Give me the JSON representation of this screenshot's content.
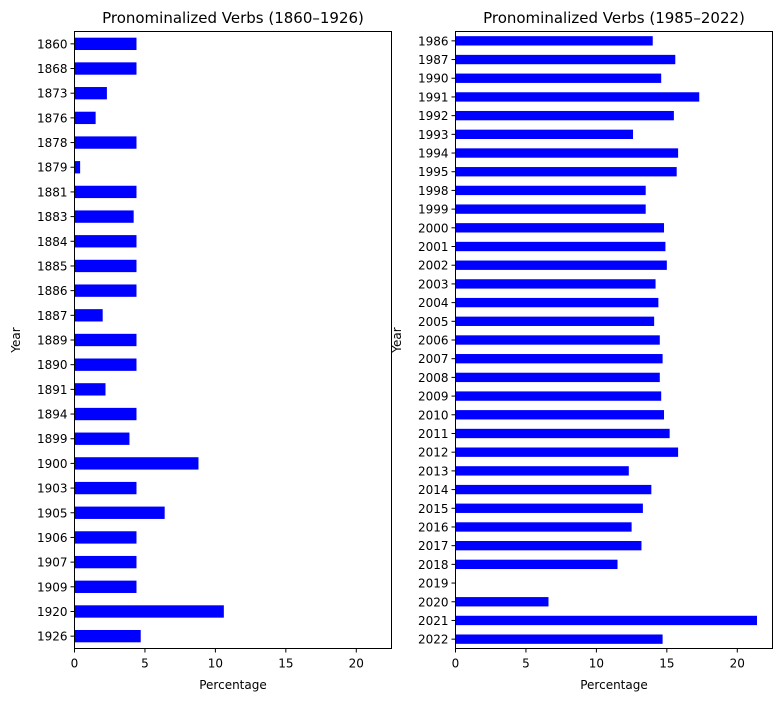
{
  "chart_data": [
    {
      "type": "bar",
      "orientation": "horizontal",
      "title": "Pronominalized Verbs (1860–1926)",
      "xlabel": "Percentage",
      "ylabel": "Year",
      "xlim": [
        0,
        22.5
      ],
      "xticks": [
        0,
        5,
        10,
        15,
        20
      ],
      "bar_color": "#0000ff",
      "categories": [
        "1860",
        "1868",
        "1873",
        "1876",
        "1878",
        "1879",
        "1881",
        "1883",
        "1884",
        "1885",
        "1886",
        "1887",
        "1889",
        "1890",
        "1891",
        "1894",
        "1899",
        "1900",
        "1903",
        "1905",
        "1906",
        "1907",
        "1909",
        "1920",
        "1926"
      ],
      "values": [
        4.4,
        4.4,
        2.3,
        1.5,
        4.4,
        0.4,
        4.4,
        4.2,
        4.4,
        4.4,
        4.4,
        2.0,
        4.4,
        4.4,
        2.2,
        4.4,
        3.9,
        8.8,
        4.4,
        6.4,
        4.4,
        4.4,
        4.4,
        10.6,
        4.7
      ]
    },
    {
      "type": "bar",
      "orientation": "horizontal",
      "title": "Pronominalized Verbs (1985–2022)",
      "xlabel": "Percentage",
      "ylabel": "Year",
      "xlim": [
        0,
        22.5
      ],
      "xticks": [
        0,
        5,
        10,
        15,
        20
      ],
      "bar_color": "#0000ff",
      "categories": [
        "1986",
        "1987",
        "1990",
        "1991",
        "1992",
        "1993",
        "1994",
        "1995",
        "1998",
        "1999",
        "2000",
        "2001",
        "2002",
        "2003",
        "2004",
        "2005",
        "2006",
        "2007",
        "2008",
        "2009",
        "2010",
        "2011",
        "2012",
        "2013",
        "2014",
        "2015",
        "2016",
        "2017",
        "2018",
        "2019",
        "2020",
        "2021",
        "2022"
      ],
      "values": [
        14.0,
        15.6,
        14.6,
        17.3,
        15.5,
        12.6,
        15.8,
        15.7,
        13.5,
        13.5,
        14.8,
        14.9,
        15.0,
        14.2,
        14.4,
        14.1,
        14.5,
        14.7,
        14.5,
        14.6,
        14.8,
        15.2,
        15.8,
        12.3,
        13.9,
        13.3,
        12.5,
        13.2,
        11.5,
        0.0,
        6.6,
        21.4,
        14.7
      ]
    }
  ]
}
